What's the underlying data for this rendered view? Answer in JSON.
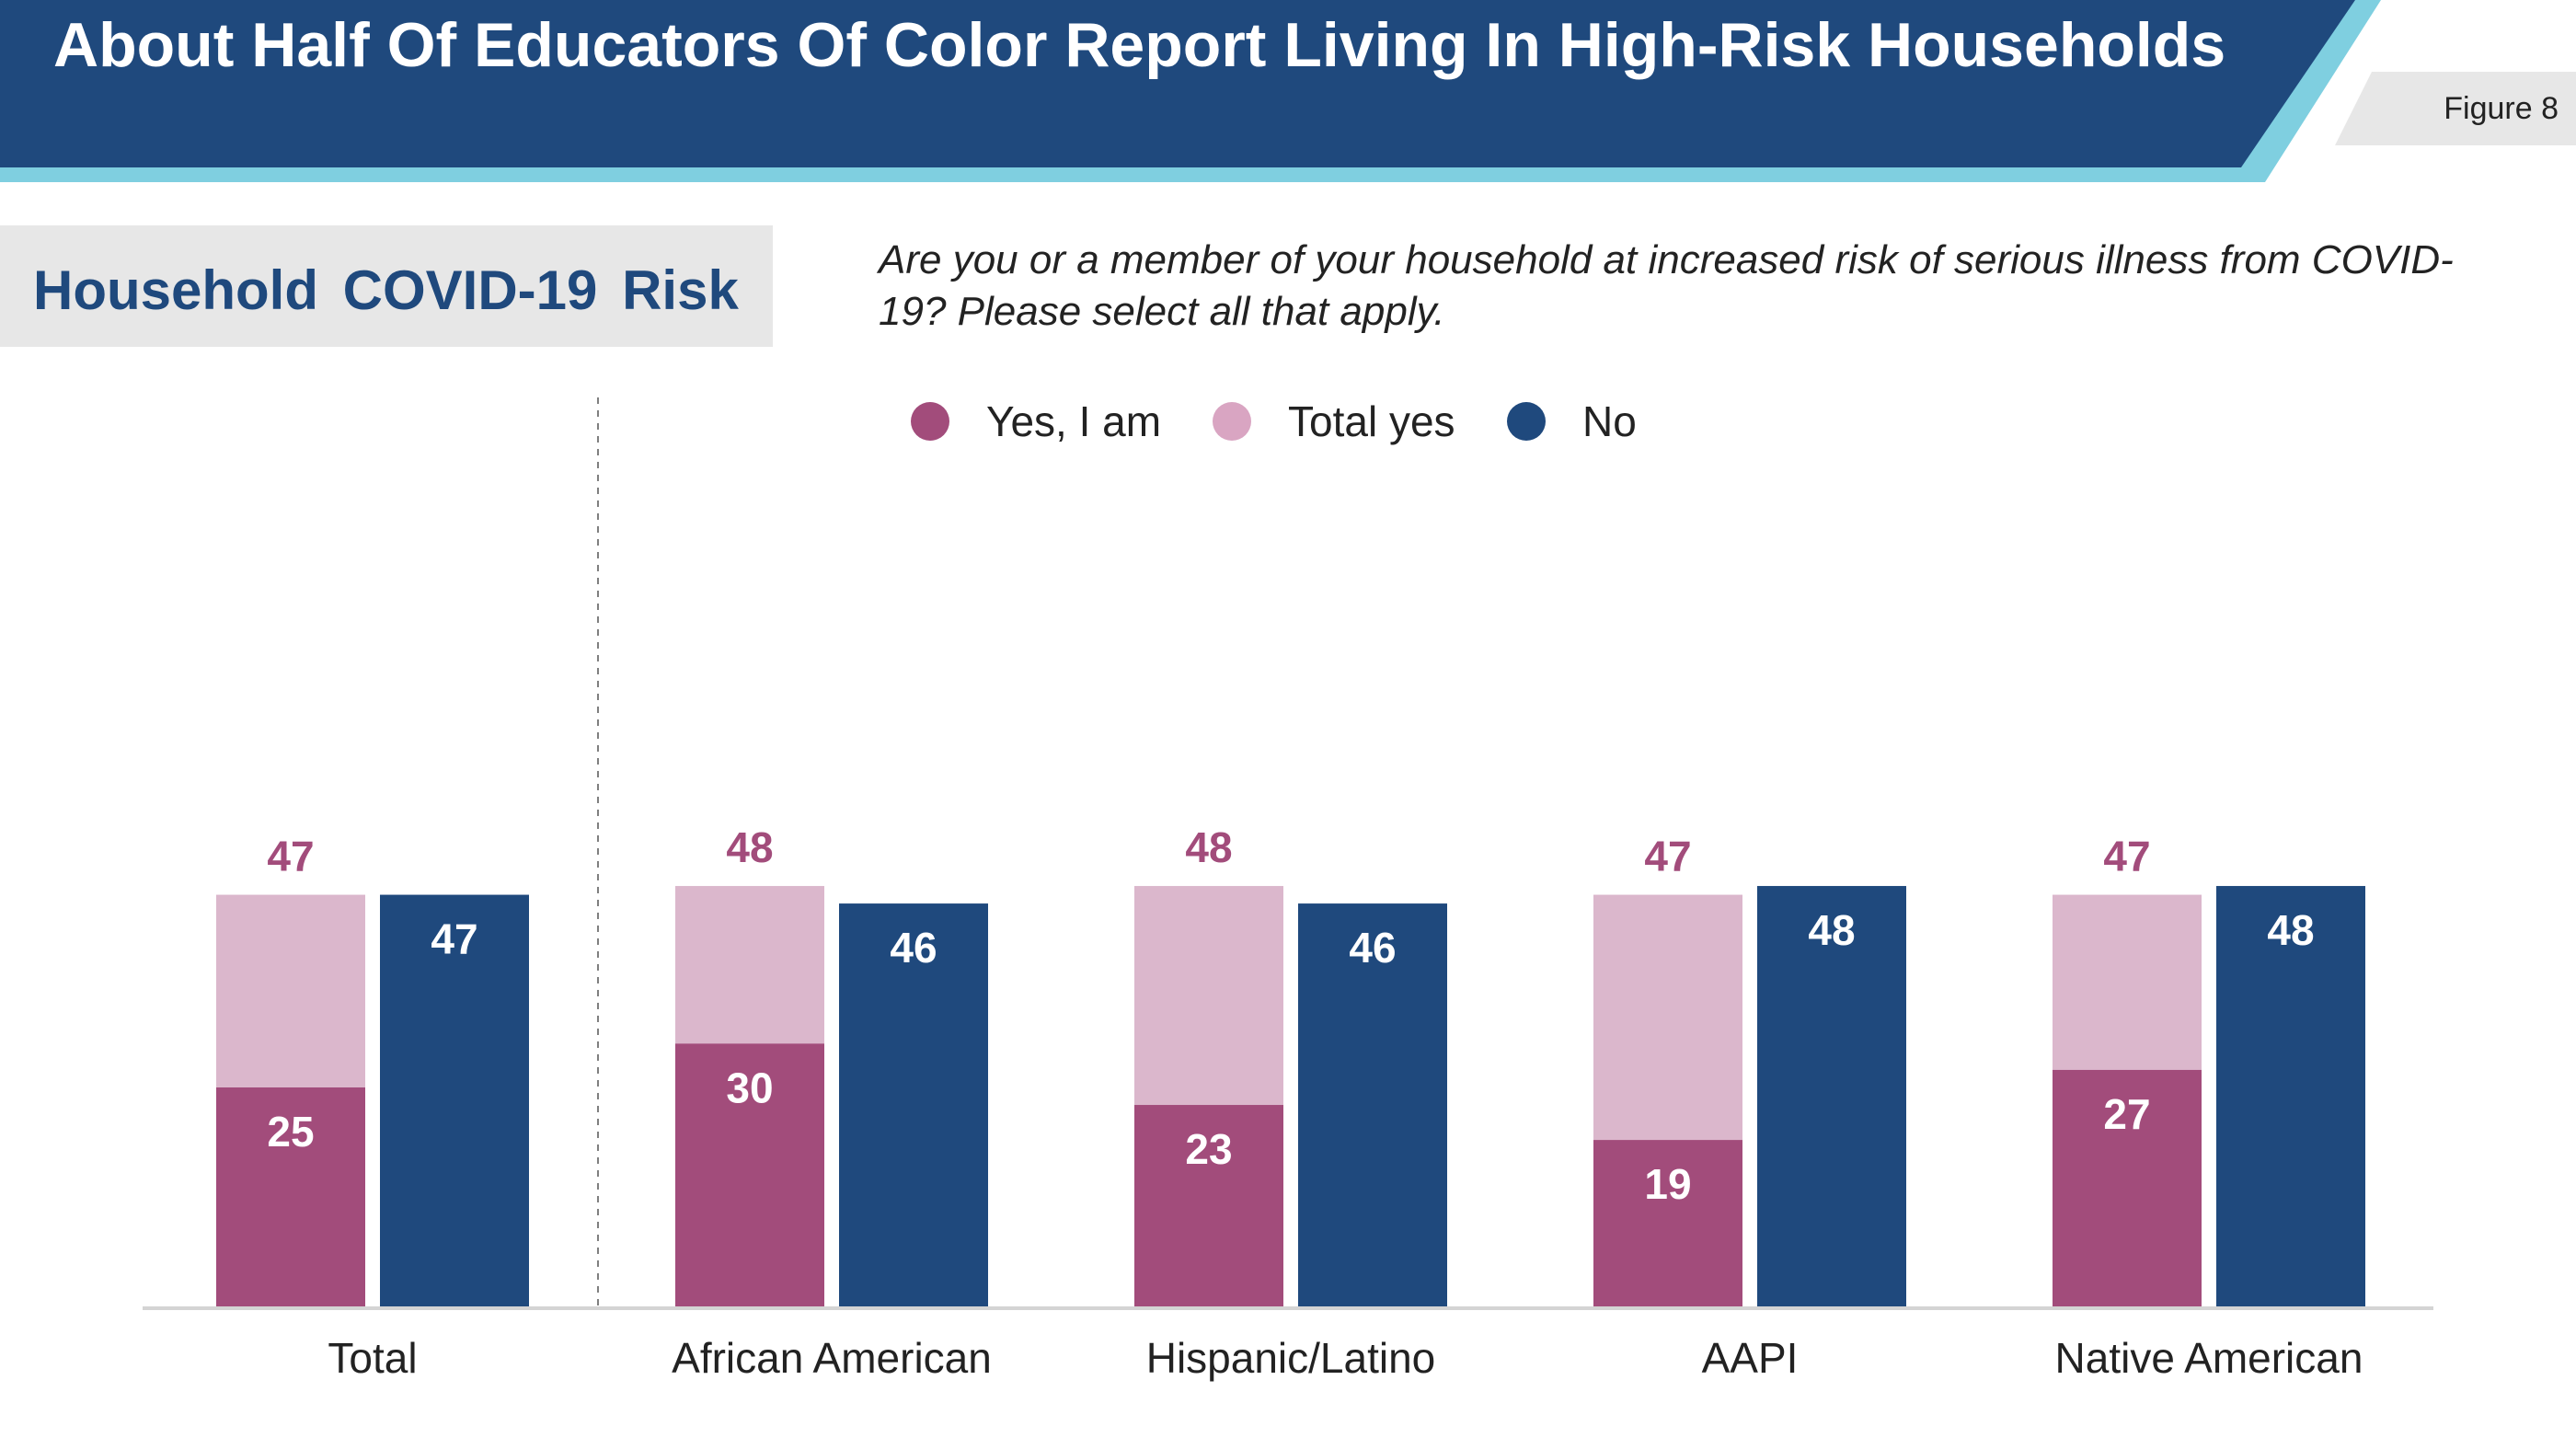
{
  "header": {
    "title": "About Half Of Educators Of Color Report Living In High-Risk Households",
    "figure_label": "Figure 8"
  },
  "subtitle": "Household COVID-19 Risk",
  "question": "Are you or a member of your household at increased risk of serious illness from COVID-19? Please select all that apply.",
  "legend": [
    {
      "label": "Yes, I am",
      "color": "#a24c7b"
    },
    {
      "label": "Total yes",
      "color": "#d9a5c2"
    },
    {
      "label": "No",
      "color": "#1f497d"
    }
  ],
  "colors": {
    "yes_i_am": "#a24c7b",
    "total_yes": "#dbb7cc",
    "no": "#1f497d",
    "total_label": "#a24c7b",
    "banner": "#1f497d",
    "banner_accent": "#7fcfe0"
  },
  "chart_data": {
    "type": "bar",
    "title": "Household COVID-19 Risk",
    "categories": [
      "Total",
      "African American",
      "Hispanic/Latino",
      "AAPI",
      "Native American"
    ],
    "series": [
      {
        "name": "Yes, I am",
        "values": [
          25,
          30,
          23,
          19,
          27
        ]
      },
      {
        "name": "Total yes",
        "values": [
          47,
          48,
          48,
          47,
          47
        ]
      },
      {
        "name": "No",
        "values": [
          47,
          46,
          46,
          48,
          48
        ]
      }
    ],
    "ylim": [
      0,
      48
    ],
    "xlabel": "",
    "ylabel": "",
    "grid": false,
    "legend_position": "top"
  }
}
